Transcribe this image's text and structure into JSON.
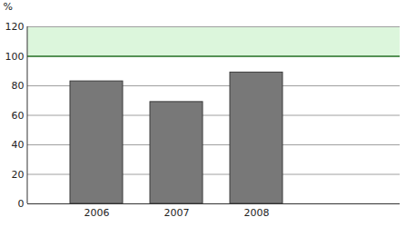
{
  "chart_data": {
    "type": "bar",
    "y_label": "%",
    "categories": [
      "2006",
      "2007",
      "2008"
    ],
    "values": [
      83,
      69,
      89
    ],
    "color": "#787878",
    "target_range": [
      100,
      120
    ],
    "ylim": [
      0,
      120
    ],
    "yticks": [
      0,
      20,
      40,
      60,
      80,
      100,
      120
    ],
    "grid": true
  }
}
